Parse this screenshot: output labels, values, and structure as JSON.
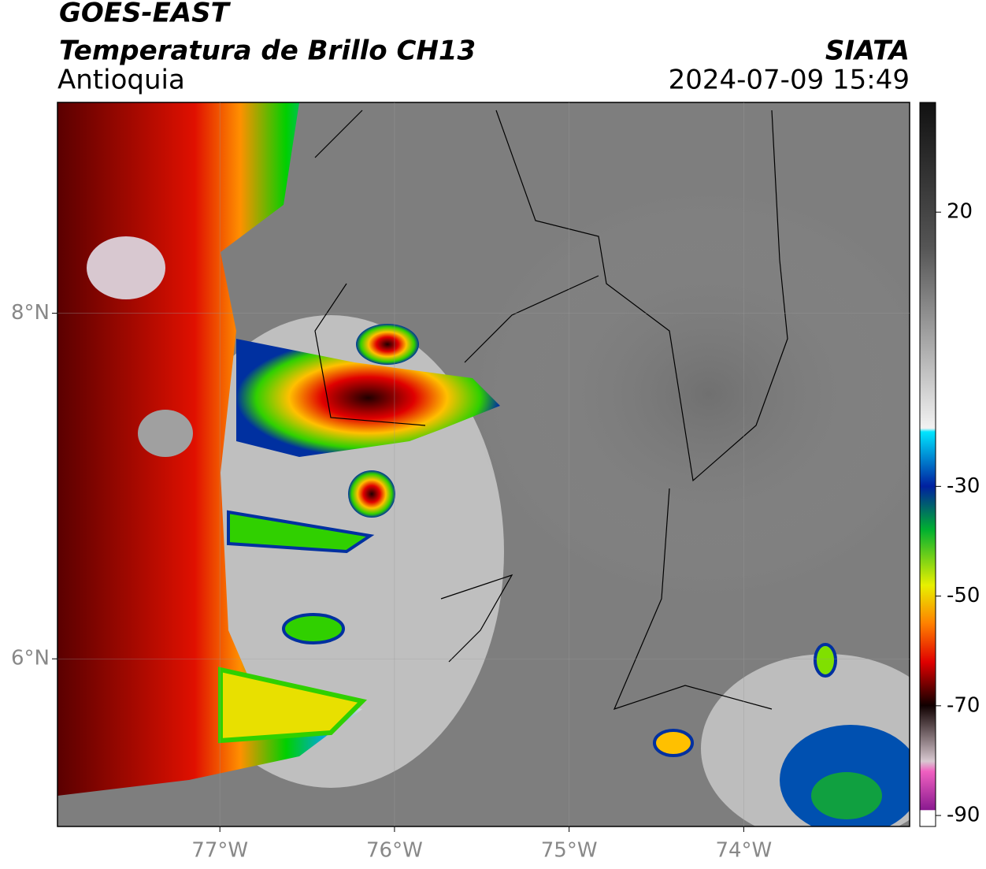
{
  "header": {
    "title": "GOES-EAST",
    "subtitle": "Temperatura de Brillo CH13",
    "region": "Antioquia",
    "source": "SIATA",
    "timestamp": "2024-07-09 15:49"
  },
  "map": {
    "xlim": [
      -77.93,
      -73.05
    ],
    "ylim": [
      5.03,
      9.22
    ],
    "xticks": [
      {
        "value": -77,
        "label": "77°W"
      },
      {
        "value": -76,
        "label": "76°W"
      },
      {
        "value": -75,
        "label": "75°W"
      },
      {
        "value": -74,
        "label": "74°W"
      }
    ],
    "yticks": [
      {
        "value": 8,
        "label": "8°N"
      },
      {
        "value": 6,
        "label": "6°N"
      }
    ],
    "grid": true
  },
  "colorbar": {
    "lim": [
      -92,
      40
    ],
    "ticks": [
      20,
      -30,
      -50,
      -70,
      -90
    ]
  }
}
